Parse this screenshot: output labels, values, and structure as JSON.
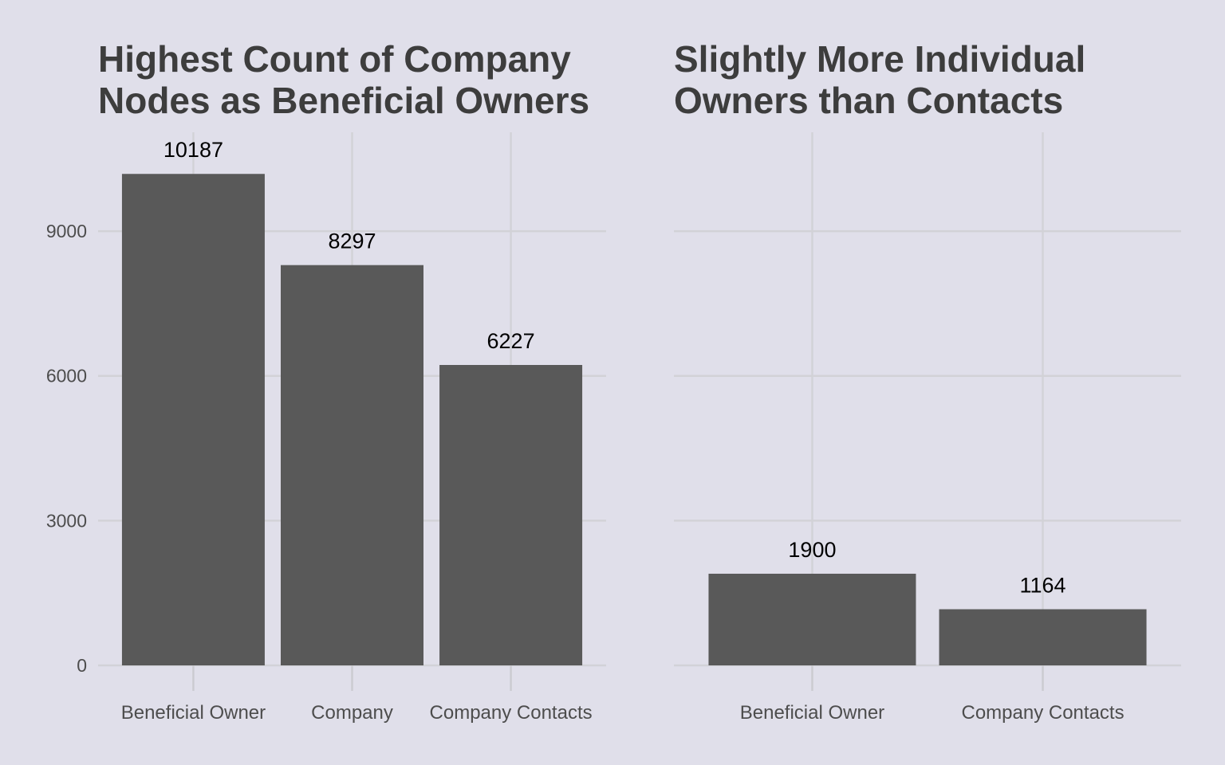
{
  "colors": {
    "background": "#e0dfea",
    "bar": "#595959",
    "grid": "#d2d2d7",
    "title_text": "#3d3d3d",
    "axis_text": "#4d4d4d",
    "data_label_text": "#000000"
  },
  "chart_data": [
    {
      "type": "bar",
      "title": [
        "Highest Count of Company",
        "Nodes as Beneficial Owners"
      ],
      "categories": [
        "Beneficial Owner",
        "Company",
        "Company Contacts"
      ],
      "values": [
        10187,
        8297,
        6227
      ],
      "data_labels": [
        "10187",
        "8297",
        "6227"
      ],
      "xlabel": "",
      "ylabel": "",
      "ylim": [
        0,
        11050
      ],
      "yticks": [
        0,
        3000,
        6000,
        9000
      ],
      "ytick_labels": [
        "0",
        "3000",
        "6000",
        "9000"
      ],
      "show_y_tick_labels": true,
      "grid": true,
      "legend": "none"
    },
    {
      "type": "bar",
      "title": [
        "Slightly More Individual",
        "Owners than Contacts"
      ],
      "categories": [
        "Beneficial Owner",
        "Company Contacts"
      ],
      "values": [
        1900,
        1164
      ],
      "data_labels": [
        "1900",
        "1164"
      ],
      "xlabel": "",
      "ylabel": "",
      "ylim": [
        0,
        11050
      ],
      "yticks": [
        0,
        3000,
        6000,
        9000
      ],
      "ytick_labels": [],
      "show_y_tick_labels": false,
      "grid": true,
      "legend": "none"
    }
  ]
}
